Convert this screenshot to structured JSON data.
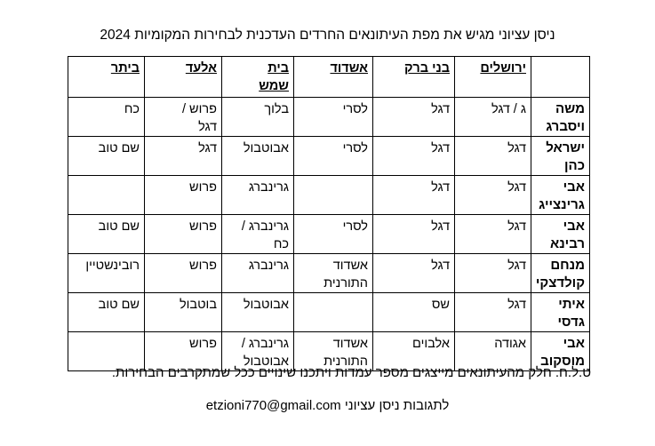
{
  "title": "ניסן עציוני מגיש את מפת העיתונאים החרדים העדכנית לבחירות המקומיות 2024",
  "table": {
    "headers": [
      "",
      "ירושלים",
      "בני ברק",
      "אשדוד",
      "בית\nשמש",
      "אלעד",
      "ביתר"
    ],
    "rows": [
      [
        "משה\nויסברג",
        "ג / דגל",
        "דגל",
        "לסרי",
        "בלוך",
        "פרוש /\nדגל",
        "כח"
      ],
      [
        "ישראל\nכהן",
        "דגל",
        "דגל",
        "לסרי",
        "אבוטבול",
        "דגל",
        "שם טוב"
      ],
      [
        "אבי\nגרינצייג",
        "דגל",
        "דגל",
        "",
        "גרינברג",
        "פרוש",
        ""
      ],
      [
        "אבי\nרבינא",
        "דגל",
        "דגל",
        "לסרי",
        "גרינברג /\nכח",
        "פרוש",
        "שם טוב"
      ],
      [
        "מנחם\nקולדצקי",
        "דגל",
        "דגל",
        "אשדוד\nהתורנית",
        "גרינברג",
        "פרוש",
        "רובינשטיין"
      ],
      [
        "איתי\nגדסי",
        "דגל",
        "שס",
        "",
        "אבוטבול",
        "בוטבול",
        "שם טוב"
      ],
      [
        "אבי\nמוסקוב",
        "אגודה",
        "אלבוים",
        "אשדוד\nהתורנית",
        "גרינברג /\nאבוטבול",
        "פרוש",
        ""
      ]
    ]
  },
  "note": "ט.ל.ח. חלק מהעיתונאים מייצגים מספר עמדות ויתכנו שינויים ככל שמתקרבים הבחירות.",
  "contact": "לתגובות ניסן עציוני etzioni770@gmail.com"
}
